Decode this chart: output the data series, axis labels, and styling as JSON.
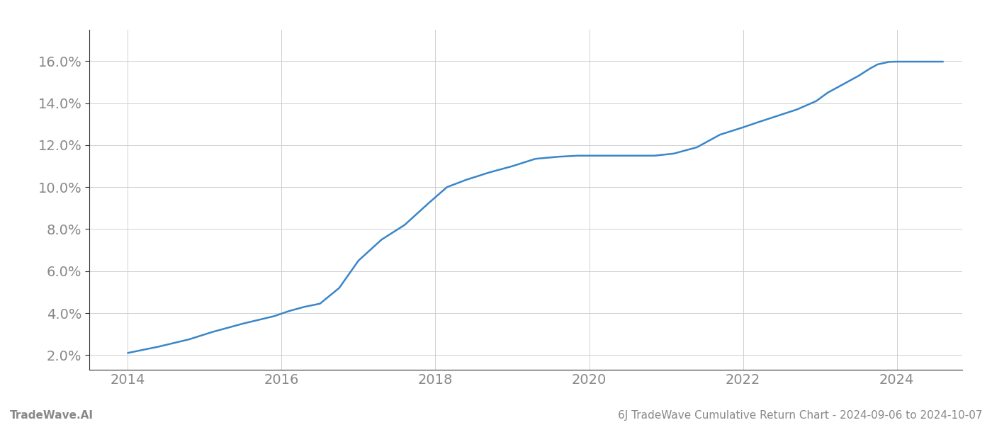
{
  "title": "",
  "footer_left": "TradeWave.AI",
  "footer_right": "6J TradeWave Cumulative Return Chart - 2024-09-06 to 2024-10-07",
  "line_color": "#3a86c8",
  "line_width": 1.8,
  "background_color": "#ffffff",
  "grid_color": "#d0d0d0",
  "x_values": [
    2014.0,
    2014.4,
    2014.8,
    2015.1,
    2015.5,
    2015.9,
    2016.1,
    2016.3,
    2016.5,
    2016.75,
    2017.0,
    2017.3,
    2017.6,
    2017.9,
    2018.15,
    2018.4,
    2018.7,
    2019.0,
    2019.3,
    2019.6,
    2019.85,
    2020.0,
    2020.3,
    2020.6,
    2020.85,
    2021.1,
    2021.4,
    2021.7,
    2022.0,
    2022.2,
    2022.45,
    2022.7,
    2022.95,
    2023.1,
    2023.3,
    2023.5,
    2023.65,
    2023.75,
    2023.9,
    2024.0,
    2024.3,
    2024.6
  ],
  "y_values": [
    2.1,
    2.4,
    2.75,
    3.1,
    3.5,
    3.85,
    4.1,
    4.3,
    4.45,
    5.2,
    6.5,
    7.5,
    8.2,
    9.2,
    10.0,
    10.35,
    10.7,
    11.0,
    11.35,
    11.45,
    11.5,
    11.5,
    11.5,
    11.5,
    11.5,
    11.6,
    11.9,
    12.5,
    12.85,
    13.1,
    13.4,
    13.7,
    14.1,
    14.5,
    14.9,
    15.3,
    15.65,
    15.85,
    15.97,
    15.98,
    15.98,
    15.98
  ],
  "xlim": [
    2013.5,
    2024.85
  ],
  "ylim": [
    1.3,
    17.5
  ],
  "xticks": [
    2014,
    2016,
    2018,
    2020,
    2022,
    2024
  ],
  "yticks": [
    2.0,
    4.0,
    6.0,
    8.0,
    10.0,
    12.0,
    14.0,
    16.0
  ],
  "tick_label_color": "#888888",
  "spine_color": "#333333",
  "footer_font_size": 11,
  "tick_font_size": 14
}
